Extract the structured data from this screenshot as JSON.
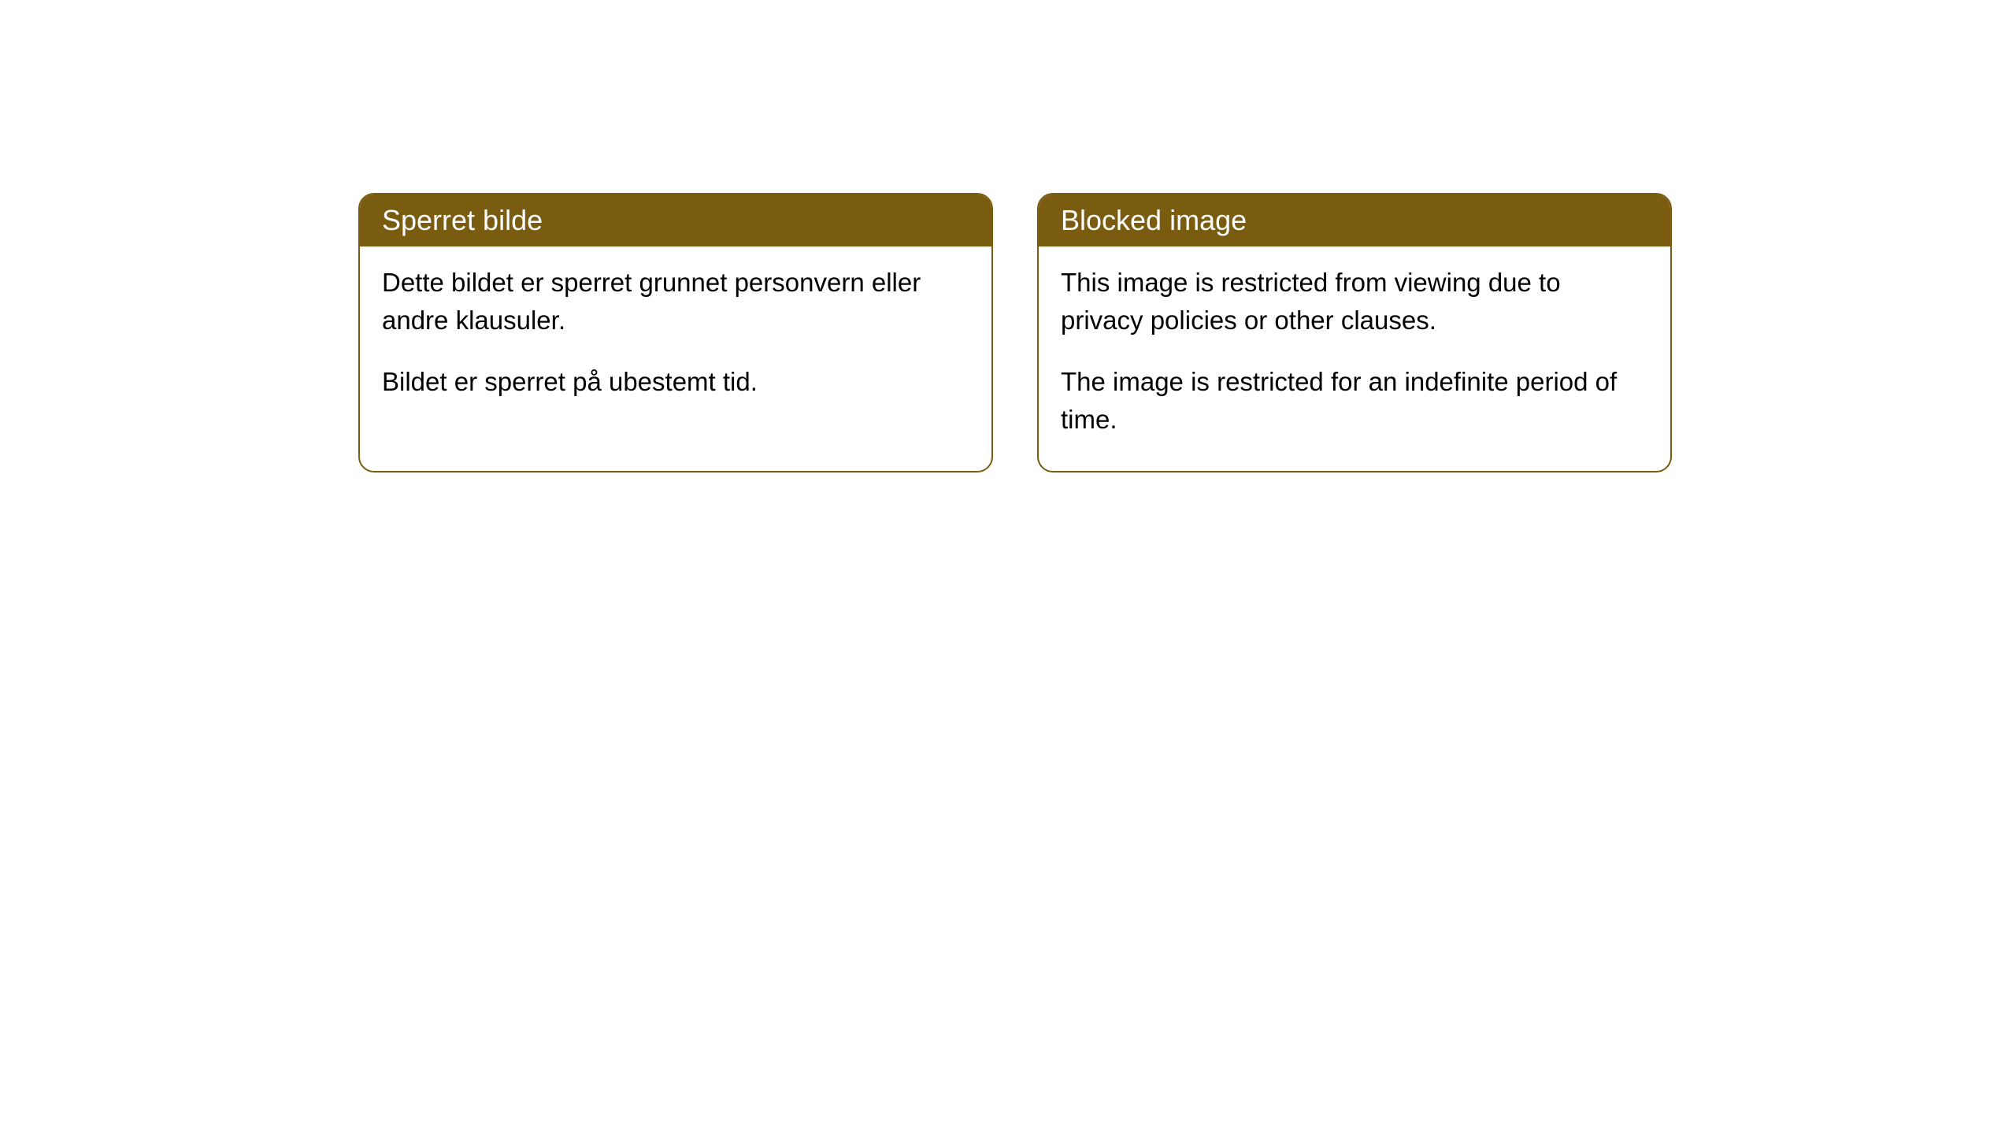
{
  "cards": [
    {
      "title": "Sperret bilde",
      "paragraph1": "Dette bildet er sperret grunnet personvern eller andre klausuler.",
      "paragraph2": "Bildet er sperret på ubestemt tid."
    },
    {
      "title": "Blocked image",
      "paragraph1": "This image is restricted from viewing due to privacy policies or other clauses.",
      "paragraph2": "The image is restricted for an indefinite period of time."
    }
  ],
  "styles": {
    "header_background": "#7a5c11",
    "header_text_color": "#ffffff",
    "border_color": "#7a5c11",
    "body_background": "#ffffff",
    "body_text_color": "#000000",
    "border_radius": "20px",
    "title_fontsize": 36,
    "body_fontsize": 33
  }
}
